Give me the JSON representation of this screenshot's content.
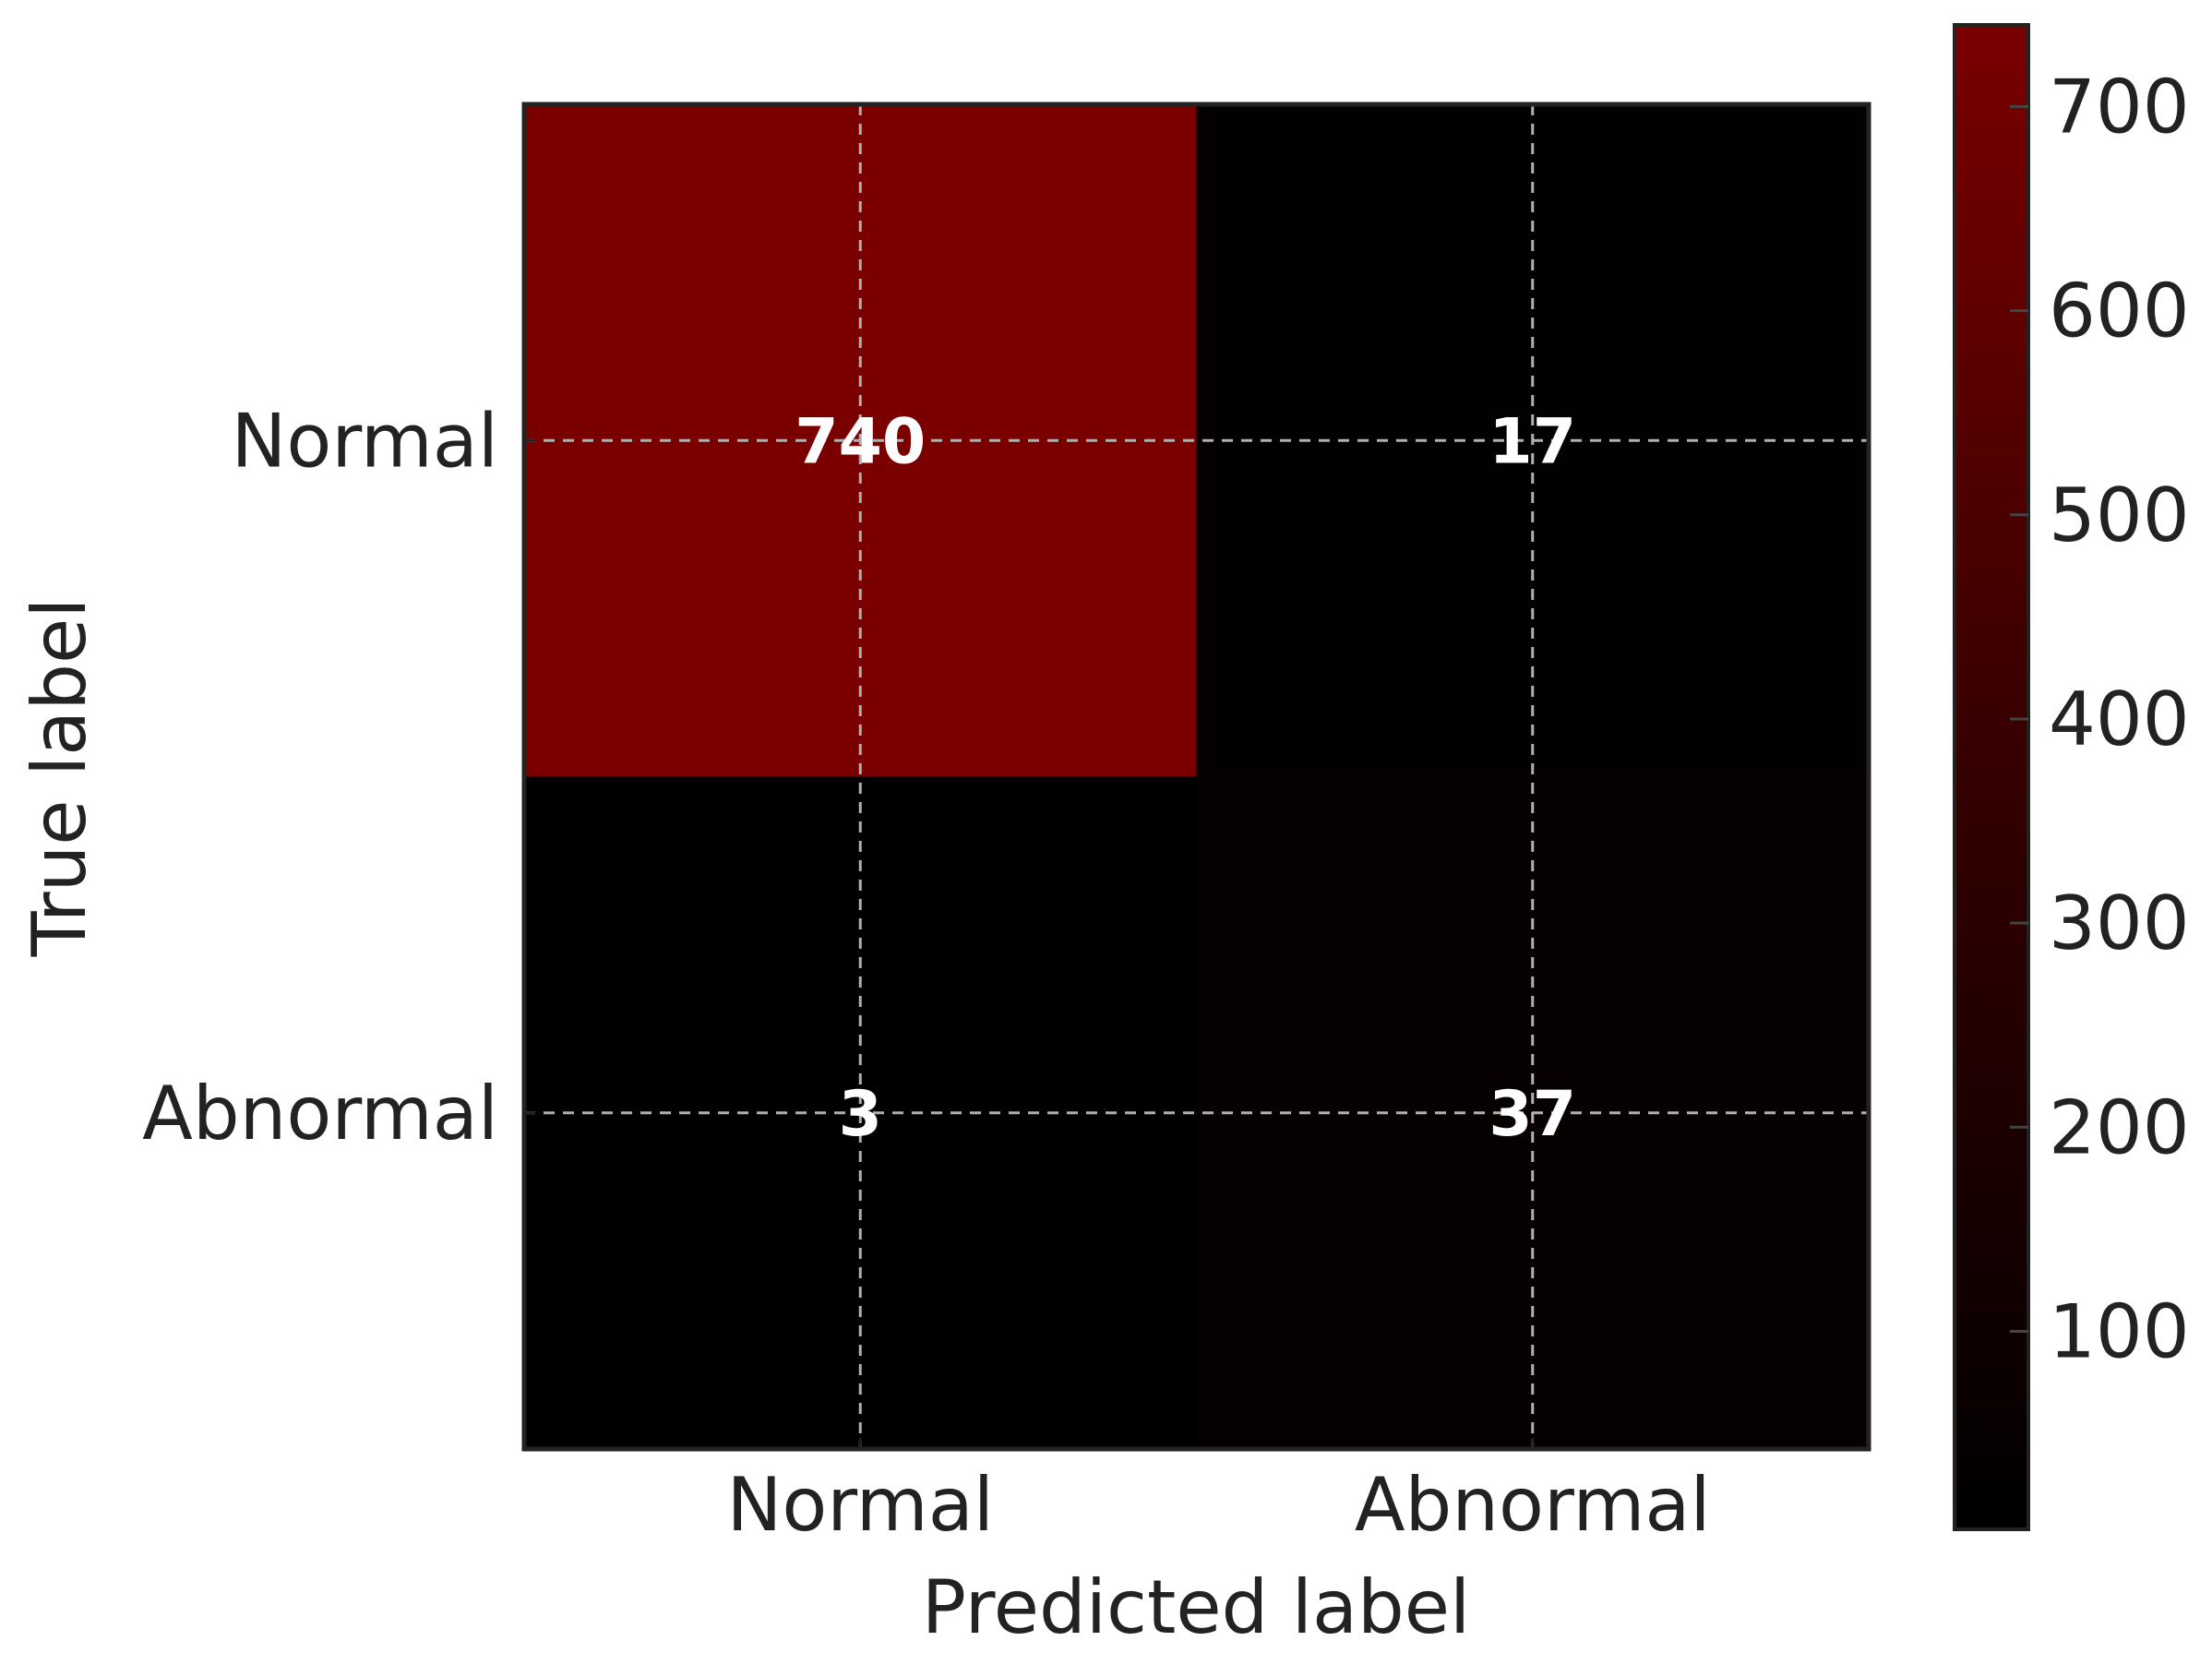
{
  "chart_data": {
    "type": "heatmap",
    "x_categories": [
      "Normal",
      "Abnormal"
    ],
    "y_categories": [
      "Normal",
      "Abnormal"
    ],
    "values": [
      [
        740,
        17
      ],
      [
        3,
        37
      ]
    ],
    "xlabel": "Predicted label",
    "ylabel": "True label",
    "grid": true,
    "colorbar": {
      "ticks": [
        100,
        200,
        300,
        400,
        500,
        600,
        700
      ],
      "range": [
        3,
        740
      ],
      "low_color": "#000000",
      "high_color": "#7a0000"
    },
    "cell_text_color": "#ffffff",
    "axis_text_color": "#222222"
  }
}
